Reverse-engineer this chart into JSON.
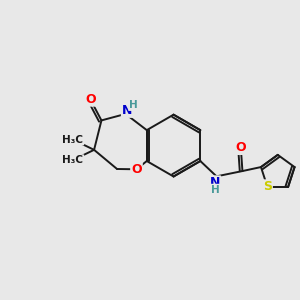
{
  "background_color": "#e8e8e8",
  "bond_color": "#1a1a1a",
  "atom_colors": {
    "O": "#ff0000",
    "N": "#0000cc",
    "S": "#cccc00",
    "H": "#4a9a9a",
    "C": "#1a1a1a"
  },
  "figsize": [
    3.0,
    3.0
  ],
  "dpi": 100
}
